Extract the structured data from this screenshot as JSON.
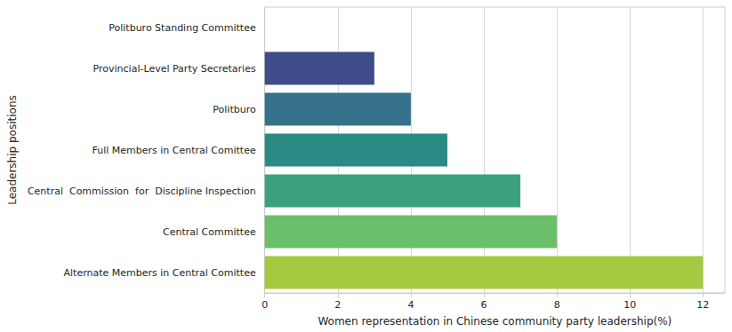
{
  "chart_data": {
    "type": "bar",
    "orientation": "horizontal",
    "xlabel": "Women representation in Chinese community party leadership(%)",
    "ylabel": "Leadership positions",
    "categories": [
      "Politburo Standing Committee",
      "Provincial-Level Party Secretaries",
      "Politburo",
      "Full Members in Central Comittee",
      "Central  Commission  for  Discipline Inspection",
      "Central Committee",
      "Alternate Members in Central Comittee"
    ],
    "values": [
      0,
      3,
      4,
      5,
      7,
      8,
      12
    ],
    "colors": [
      "#472c7a",
      "#3e4c8a",
      "#35718a",
      "#2a8a84",
      "#3aa17c",
      "#6bbf6b",
      "#a6c941"
    ],
    "xlim": [
      0,
      12.6
    ],
    "xticks": [
      0,
      2,
      4,
      6,
      8,
      10,
      12
    ],
    "grid": true
  }
}
